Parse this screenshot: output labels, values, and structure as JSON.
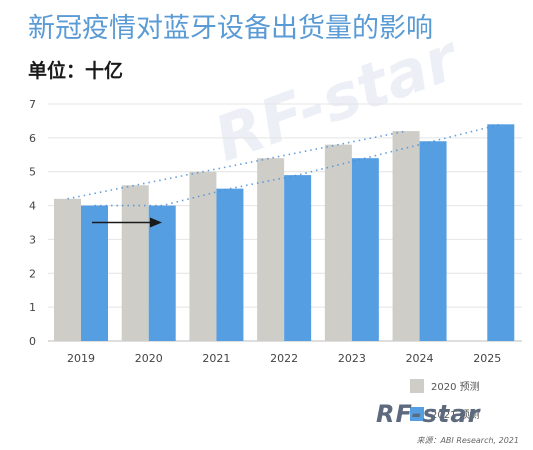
{
  "header": {
    "title": "新冠疫情对蓝牙设备出货量的影响",
    "unit": "单位：十亿"
  },
  "colors": {
    "title": "#5b9bd5",
    "series_2020": "#cfcdc8",
    "series_2021": "#559ee2",
    "trend": "#4a8fd6",
    "arrow": "#1a1a1a"
  },
  "chart_data": {
    "type": "bar",
    "categories": [
      "2019",
      "2020",
      "2021",
      "2022",
      "2023",
      "2024",
      "2025"
    ],
    "series": [
      {
        "name": "2020 预测",
        "values": [
          4.2,
          4.6,
          5.0,
          5.4,
          5.8,
          6.2,
          null
        ]
      },
      {
        "name": "2021 预测",
        "values": [
          4.0,
          4.0,
          4.5,
          4.9,
          5.4,
          5.9,
          6.4
        ]
      }
    ],
    "yticks": [
      "0",
      "1",
      "2",
      "3",
      "4",
      "5",
      "6",
      "7"
    ],
    "ylim": [
      0,
      7
    ],
    "grid": true,
    "legend": "bottom-right",
    "trendlines": "dotted"
  },
  "legend": {
    "item1": "2020 预测",
    "item2": "2021 预测"
  },
  "source": "来源：ABI Research, 2021",
  "logo": "RF-star",
  "watermark": "RF-star"
}
